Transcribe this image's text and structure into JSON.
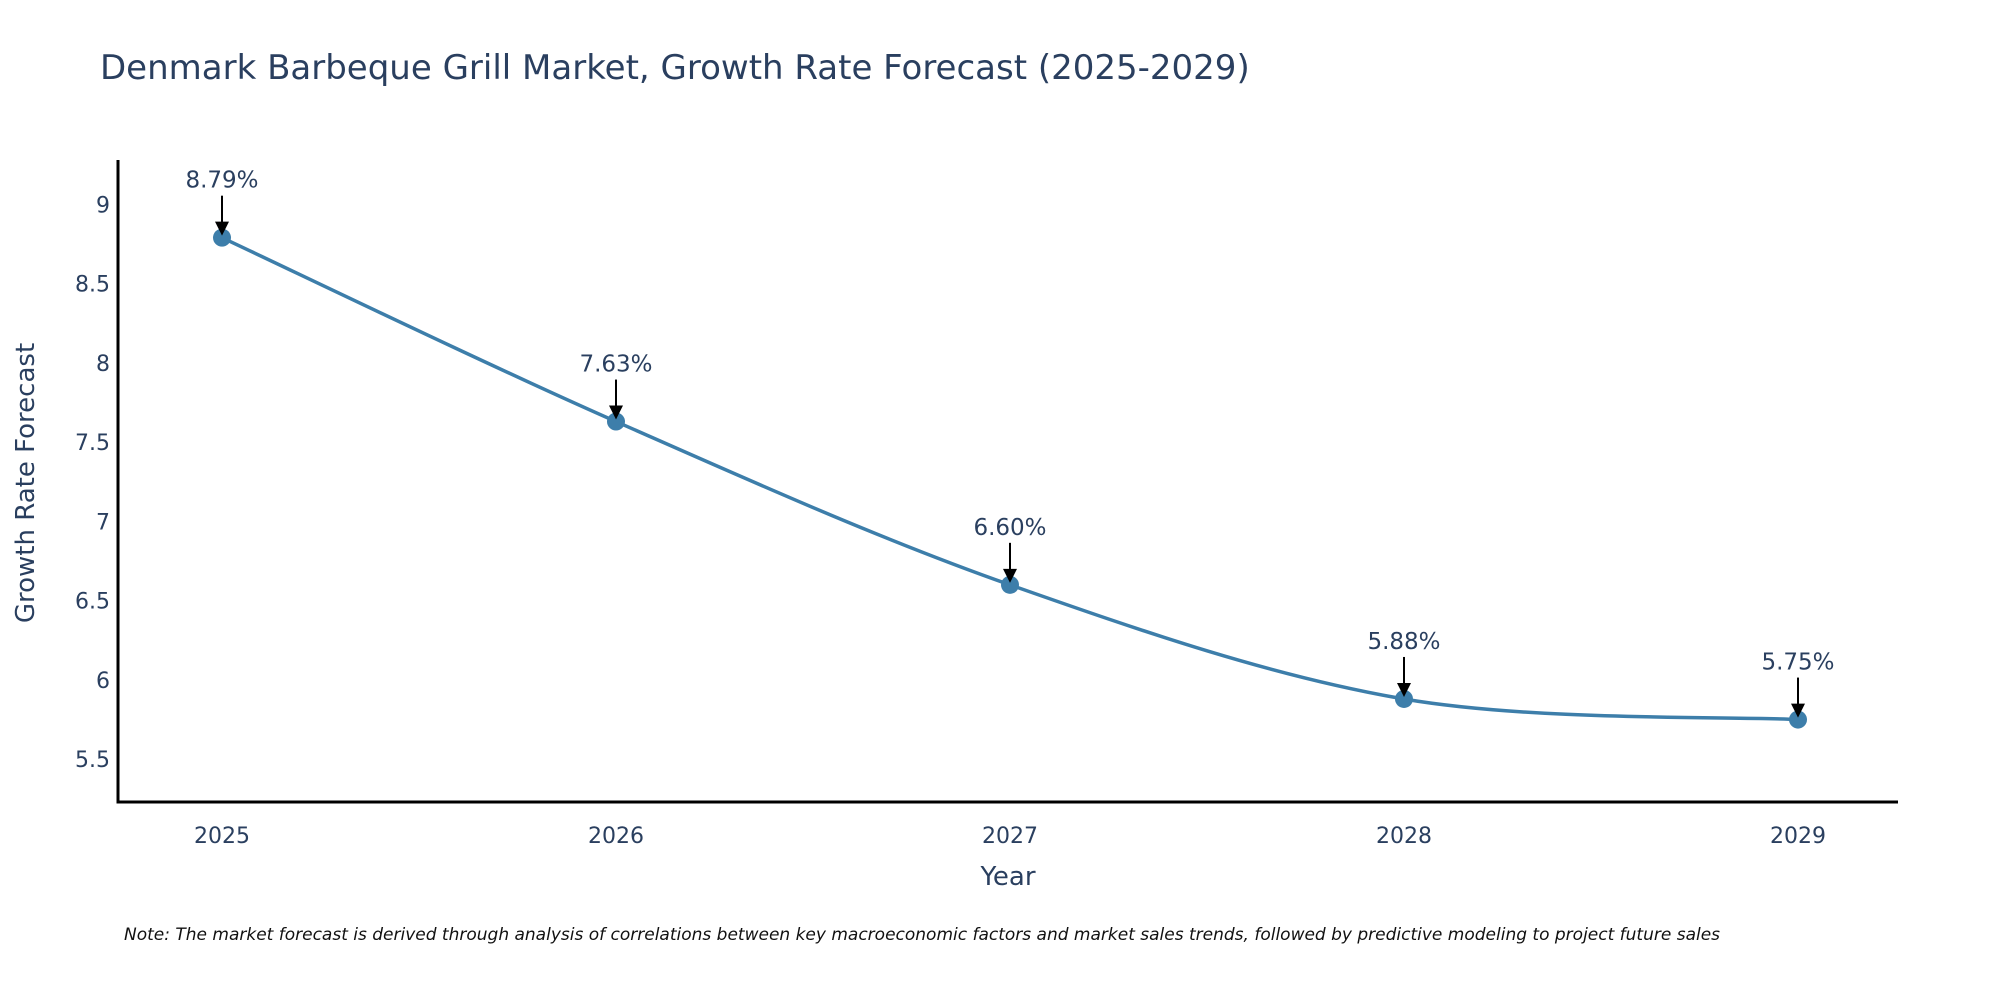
{
  "chart_data": {
    "type": "line",
    "title": "Denmark Barbeque Grill Market, Growth Rate Forecast (2025-2029)",
    "xlabel": "Year",
    "ylabel": "Growth Rate Forecast",
    "categories": [
      "2025",
      "2026",
      "2027",
      "2028",
      "2029"
    ],
    "series": [
      {
        "name": "Growth Rate Forecast",
        "values": [
          8.79,
          7.63,
          6.6,
          5.88,
          5.75
        ],
        "labels": [
          "8.79%",
          "7.63%",
          "6.60%",
          "5.88%",
          "5.75%"
        ],
        "color": "#3d7eaa",
        "line_shape": "spline",
        "markers": true
      }
    ],
    "yticks": [
      5.5,
      6,
      6.5,
      7,
      7.5,
      8,
      8.5,
      9
    ],
    "ytick_labels": [
      "5.5",
      "6",
      "6.5",
      "7",
      "7.5",
      "8",
      "8.5",
      "9"
    ],
    "ylim": [
      5.23,
      9.28
    ],
    "grid": false,
    "legend": "none",
    "annotation_arrows": true,
    "note": "Note: The market forecast is derived through analysis of correlations between key macroeconomic factors and market sales trends, followed by predictive modeling to project future sales"
  },
  "colors": {
    "line": "#3d7eaa",
    "marker": "#3d7eaa",
    "text": "#2a3f5f",
    "axis": "#000000",
    "arrow": "#000000"
  }
}
